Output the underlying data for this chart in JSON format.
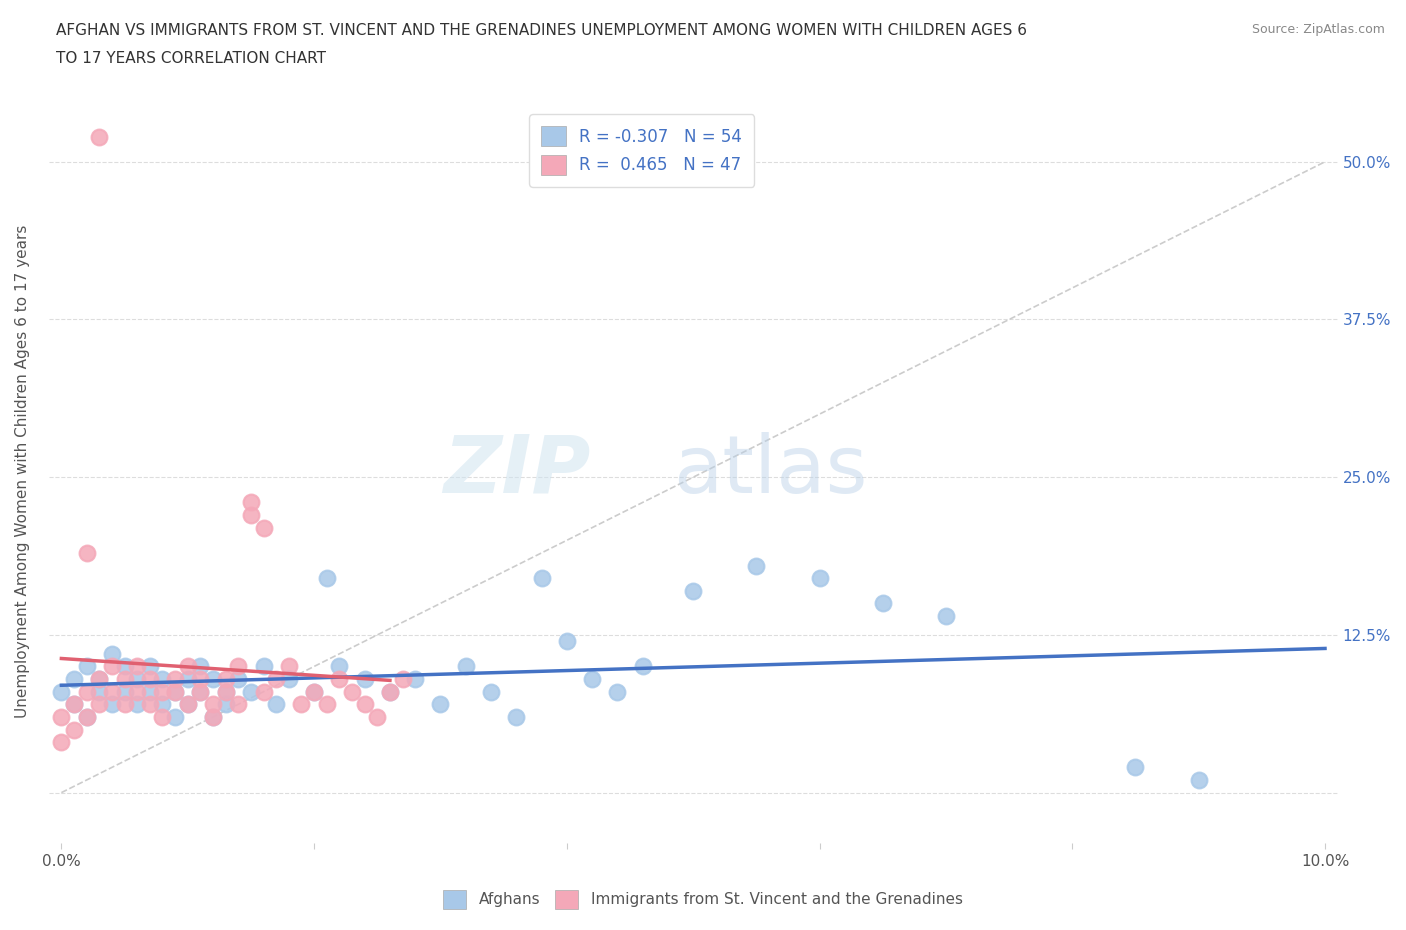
{
  "title_line1": "AFGHAN VS IMMIGRANTS FROM ST. VINCENT AND THE GRENADINES UNEMPLOYMENT AMONG WOMEN WITH CHILDREN AGES 6",
  "title_line2": "TO 17 YEARS CORRELATION CHART",
  "source": "Source: ZipAtlas.com",
  "ylabel": "Unemployment Among Women with Children Ages 6 to 17 years",
  "blue_R": -0.307,
  "blue_N": 54,
  "pink_R": 0.465,
  "pink_N": 47,
  "blue_color": "#a8c8e8",
  "pink_color": "#f4a8b8",
  "blue_line_color": "#4472C4",
  "pink_line_color": "#E06070",
  "legend_label_blue": "Afghans",
  "legend_label_pink": "Immigrants from St. Vincent and the Grenadines",
  "background_color": "#ffffff",
  "blue_scatter_x": [
    0.0,
    0.001,
    0.001,
    0.002,
    0.002,
    0.003,
    0.003,
    0.004,
    0.004,
    0.005,
    0.005,
    0.006,
    0.006,
    0.007,
    0.007,
    0.008,
    0.008,
    0.009,
    0.009,
    0.01,
    0.01,
    0.011,
    0.011,
    0.012,
    0.012,
    0.013,
    0.013,
    0.014,
    0.015,
    0.016,
    0.017,
    0.018,
    0.02,
    0.021,
    0.022,
    0.024,
    0.026,
    0.028,
    0.03,
    0.032,
    0.034,
    0.036,
    0.038,
    0.04,
    0.042,
    0.044,
    0.046,
    0.05,
    0.055,
    0.06,
    0.065,
    0.07,
    0.085,
    0.09
  ],
  "blue_scatter_y": [
    0.08,
    0.07,
    0.09,
    0.06,
    0.1,
    0.08,
    0.09,
    0.07,
    0.11,
    0.08,
    0.1,
    0.07,
    0.09,
    0.08,
    0.1,
    0.07,
    0.09,
    0.06,
    0.08,
    0.09,
    0.07,
    0.08,
    0.1,
    0.06,
    0.09,
    0.08,
    0.07,
    0.09,
    0.08,
    0.1,
    0.07,
    0.09,
    0.08,
    0.17,
    0.1,
    0.09,
    0.08,
    0.09,
    0.07,
    0.1,
    0.08,
    0.06,
    0.17,
    0.12,
    0.09,
    0.08,
    0.1,
    0.16,
    0.18,
    0.17,
    0.15,
    0.14,
    0.02,
    0.01
  ],
  "pink_scatter_x": [
    0.0,
    0.0,
    0.001,
    0.001,
    0.002,
    0.002,
    0.003,
    0.003,
    0.004,
    0.004,
    0.005,
    0.005,
    0.006,
    0.006,
    0.007,
    0.007,
    0.008,
    0.008,
    0.009,
    0.009,
    0.01,
    0.01,
    0.011,
    0.011,
    0.012,
    0.012,
    0.013,
    0.013,
    0.014,
    0.014,
    0.015,
    0.015,
    0.016,
    0.016,
    0.017,
    0.018,
    0.019,
    0.02,
    0.021,
    0.022,
    0.023,
    0.024,
    0.025,
    0.026,
    0.027,
    0.002,
    0.003
  ],
  "pink_scatter_y": [
    0.06,
    0.04,
    0.05,
    0.07,
    0.08,
    0.06,
    0.07,
    0.09,
    0.08,
    0.1,
    0.07,
    0.09,
    0.08,
    0.1,
    0.09,
    0.07,
    0.08,
    0.06,
    0.09,
    0.08,
    0.07,
    0.1,
    0.09,
    0.08,
    0.07,
    0.06,
    0.08,
    0.09,
    0.07,
    0.1,
    0.22,
    0.23,
    0.21,
    0.08,
    0.09,
    0.1,
    0.07,
    0.08,
    0.07,
    0.09,
    0.08,
    0.07,
    0.06,
    0.08,
    0.09,
    0.19,
    0.52
  ]
}
